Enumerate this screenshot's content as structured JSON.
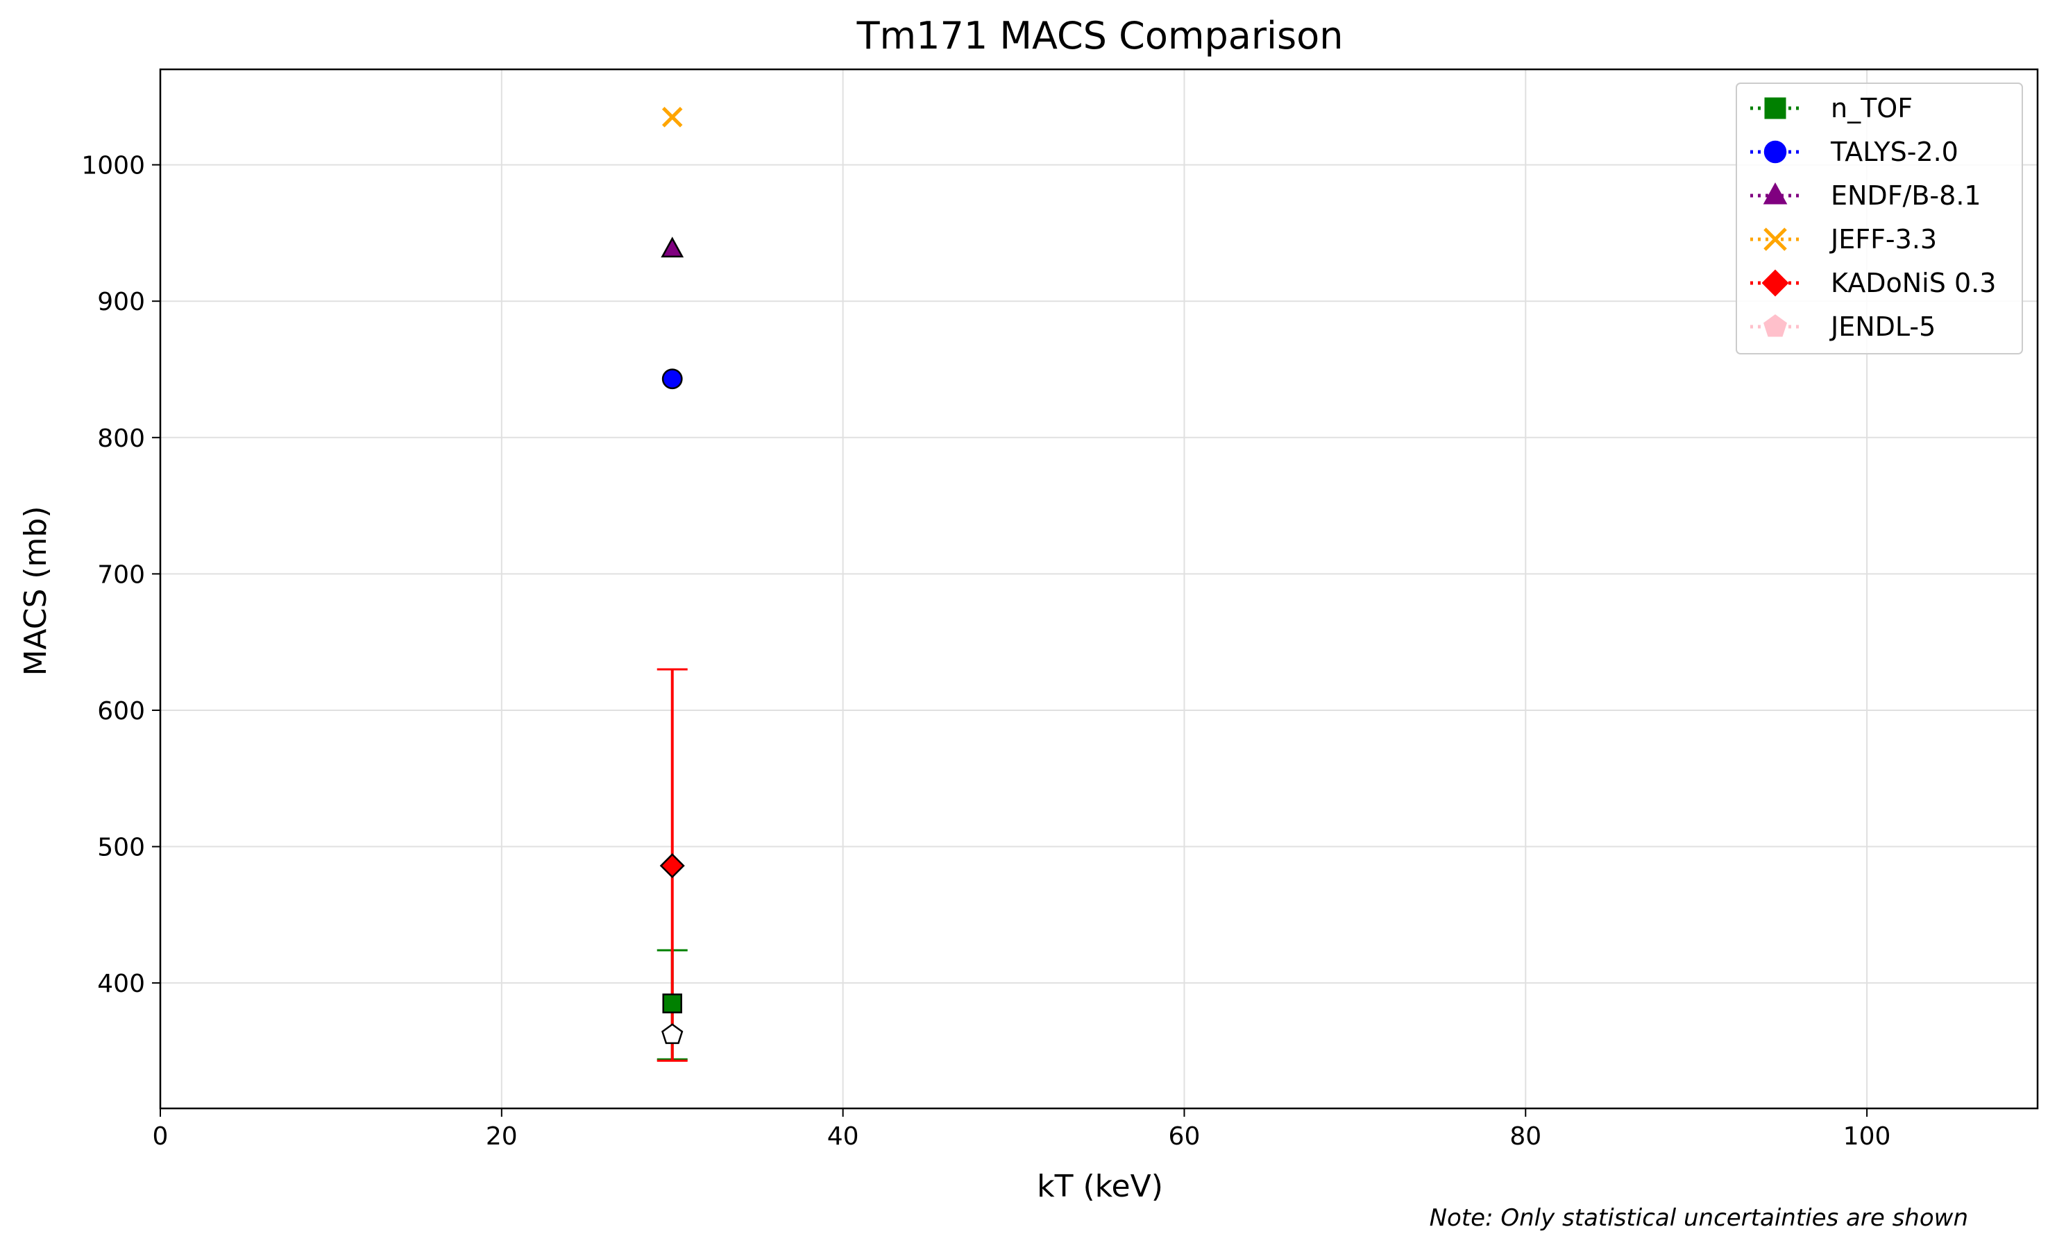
{
  "chart_data": {
    "type": "scatter",
    "title": "Tm171 MACS Comparison",
    "xlabel": "kT (keV)",
    "ylabel": "MACS (mb)",
    "xlim": [
      0,
      110
    ],
    "ylim": [
      308,
      1070
    ],
    "xticks": [
      0,
      20,
      40,
      60,
      80,
      100
    ],
    "yticks": [
      400,
      500,
      600,
      700,
      800,
      900,
      1000
    ],
    "grid": true,
    "legend_position": "upper right",
    "series": [
      {
        "name": "n_TOF",
        "color": "#008000",
        "marker": "square",
        "x": 30,
        "y": 385,
        "yerr": [
          344,
          424
        ]
      },
      {
        "name": "TALYS-2.0",
        "color": "#0000ff",
        "marker": "circle",
        "x": 30,
        "y": 843
      },
      {
        "name": "ENDF/B-8.1",
        "color": "#800080",
        "marker": "triangle",
        "x": 30,
        "y": 938
      },
      {
        "name": "JEFF-3.3",
        "color": "#ffa500",
        "marker": "x",
        "x": 30,
        "y": 1035
      },
      {
        "name": "KADoNiS 0.3",
        "color": "#ff0000",
        "marker": "diamond",
        "x": 30,
        "y": 486,
        "yerr": [
          343,
          630
        ]
      },
      {
        "name": "JENDL-5",
        "color": "#ffc0cb",
        "marker": "pentagon",
        "x": 30,
        "y": 362
      }
    ],
    "note": "Note: Only statistical uncertainties are shown"
  }
}
